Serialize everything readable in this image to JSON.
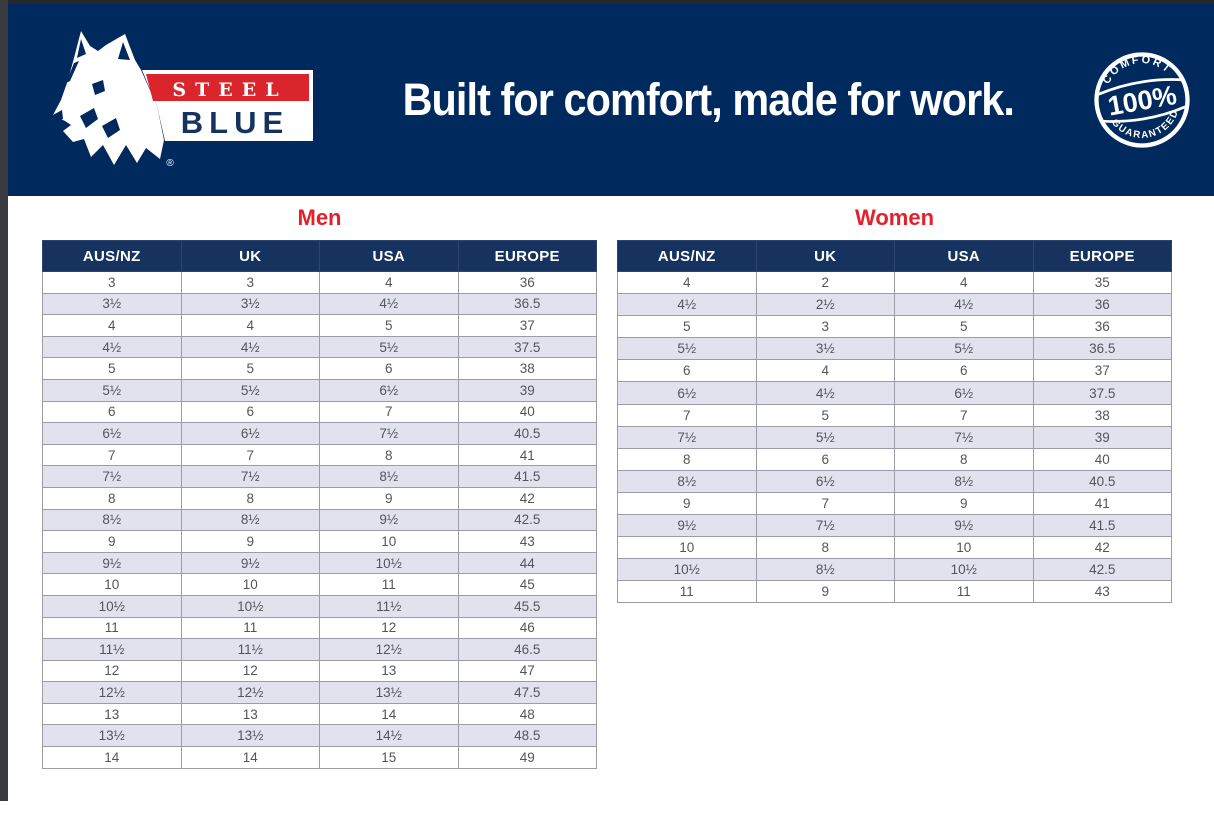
{
  "header": {
    "logo": {
      "icon": "dingo-head-icon",
      "steel_label": "STEEL",
      "blue_label": "BLUE",
      "registered_mark": "®"
    },
    "tagline": "Built for comfort, made for work.",
    "stamp": {
      "icon": "comfort-guarantee-stamp-icon",
      "top_label": "COMFORT",
      "center_label": "100%",
      "bottom_label": "GUARANTEED"
    }
  },
  "colors": {
    "band_navy": "#002a5e",
    "table_header_navy": "#16335f",
    "accent_red": "#e4202a",
    "logo_red": "#d9252b",
    "stripe": "#e1e2ee",
    "cell_text": "#54555b",
    "white": "#ffffff"
  },
  "men_table": {
    "title": "Men",
    "columns": [
      "AUS/NZ",
      "UK",
      "USA",
      "EUROPE"
    ],
    "rows": [
      [
        "3",
        "3",
        "4",
        "36"
      ],
      [
        "3½",
        "3½",
        "4½",
        "36.5"
      ],
      [
        "4",
        "4",
        "5",
        "37"
      ],
      [
        "4½",
        "4½",
        "5½",
        "37.5"
      ],
      [
        "5",
        "5",
        "6",
        "38"
      ],
      [
        "5½",
        "5½",
        "6½",
        "39"
      ],
      [
        "6",
        "6",
        "7",
        "40"
      ],
      [
        "6½",
        "6½",
        "7½",
        "40.5"
      ],
      [
        "7",
        "7",
        "8",
        "41"
      ],
      [
        "7½",
        "7½",
        "8½",
        "41.5"
      ],
      [
        "8",
        "8",
        "9",
        "42"
      ],
      [
        "8½",
        "8½",
        "9½",
        "42.5"
      ],
      [
        "9",
        "9",
        "10",
        "43"
      ],
      [
        "9½",
        "9½",
        "10½",
        "44"
      ],
      [
        "10",
        "10",
        "11",
        "45"
      ],
      [
        "10½",
        "10½",
        "11½",
        "45.5"
      ],
      [
        "11",
        "11",
        "12",
        "46"
      ],
      [
        "11½",
        "11½",
        "12½",
        "46.5"
      ],
      [
        "12",
        "12",
        "13",
        "47"
      ],
      [
        "12½",
        "12½",
        "13½",
        "47.5"
      ],
      [
        "13",
        "13",
        "14",
        "48"
      ],
      [
        "13½",
        "13½",
        "14½",
        "48.5"
      ],
      [
        "14",
        "14",
        "15",
        "49"
      ]
    ]
  },
  "women_table": {
    "title": "Women",
    "columns": [
      "AUS/NZ",
      "UK",
      "USA",
      "EUROPE"
    ],
    "rows": [
      [
        "4",
        "2",
        "4",
        "35"
      ],
      [
        "4½",
        "2½",
        "4½",
        "36"
      ],
      [
        "5",
        "3",
        "5",
        "36"
      ],
      [
        "5½",
        "3½",
        "5½",
        "36.5"
      ],
      [
        "6",
        "4",
        "6",
        "37"
      ],
      [
        "6½",
        "4½",
        "6½",
        "37.5"
      ],
      [
        "7",
        "5",
        "7",
        "38"
      ],
      [
        "7½",
        "5½",
        "7½",
        "39"
      ],
      [
        "8",
        "6",
        "8",
        "40"
      ],
      [
        "8½",
        "6½",
        "8½",
        "40.5"
      ],
      [
        "9",
        "7",
        "9",
        "41"
      ],
      [
        "9½",
        "7½",
        "9½",
        "41.5"
      ],
      [
        "10",
        "8",
        "10",
        "42"
      ],
      [
        "10½",
        "8½",
        "10½",
        "42.5"
      ],
      [
        "11",
        "9",
        "11",
        "43"
      ]
    ]
  }
}
